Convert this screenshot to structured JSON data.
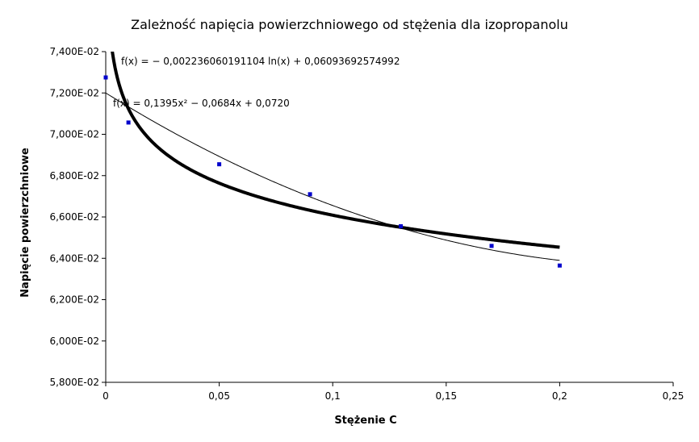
{
  "chart_data": {
    "type": "scatter",
    "title": "Zależność napięcia powierzchniowego od stężenia dla izopropanolu",
    "xlabel": "Stężenie C",
    "ylabel": "Napięcie powierzchniowe",
    "xlim": [
      0,
      0.25
    ],
    "ylim": [
      0.058,
      0.074
    ],
    "x_ticks": [
      "0",
      "0,05",
      "0,1",
      "0,15",
      "0,2",
      "0,25"
    ],
    "y_ticks": [
      "5,800E-02",
      "6,000E-02",
      "6,200E-02",
      "6,400E-02",
      "6,600E-02",
      "6,800E-02",
      "7,000E-02",
      "7,200E-02",
      "7,400E-02"
    ],
    "grid": false,
    "point_color": "#0000cc",
    "points": {
      "x": [
        0,
        0.01,
        0.05,
        0.09,
        0.13,
        0.17,
        0.2
      ],
      "y": [
        0.07275,
        0.07057,
        0.06855,
        0.0671,
        0.06555,
        0.0646,
        0.06365
      ]
    },
    "trendlines": [
      {
        "type": "logarithmic",
        "equation": "f(x) = − 0,002236060191104 ln(x) + 0,06093692574992",
        "a": -0.002236060191104,
        "b": 0.06093692574992,
        "x_range": [
          0.0001,
          0.2
        ],
        "color": "#000000"
      },
      {
        "type": "polynomial",
        "equation": "f(x) = 0,1395x² − 0,0684x + 0,0720",
        "coefficients": [
          0.1395,
          -0.0684,
          0.072
        ],
        "x_range": [
          0,
          0.2
        ],
        "color": "#000000"
      }
    ]
  }
}
